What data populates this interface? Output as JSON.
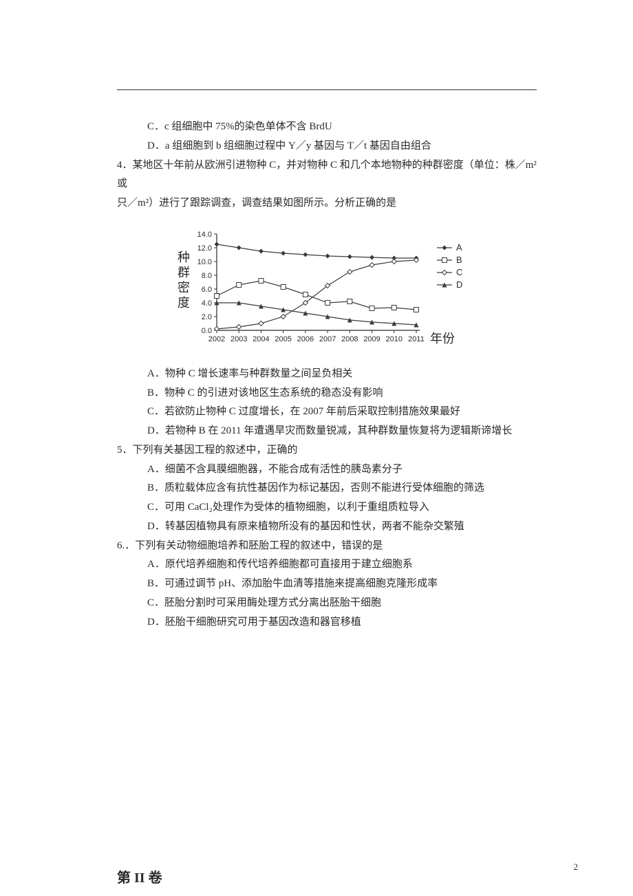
{
  "q3": {
    "option_c": "C．c 组细胞中 75%的染色单体不含 BrdU",
    "option_d": "D．a 组细胞到 b 组细胞过程中 Y／y 基因与 T／t 基因自由组合"
  },
  "q4": {
    "stem1": "4．某地区十年前从欧洲引进物种 C，并对物种 C 和几个本地物种的种群密度（单位：株／m²或",
    "stem2": "只／m²）进行了跟踪调查，调查结果如图所示。分析正确的是",
    "option_a": "A．物种 C 增长速率与种群数量之间呈负相关",
    "option_b": "B．物种 C 的引进对该地区生态系统的稳态没有影响",
    "option_c": "C．若欲防止物种 C 过度增长，在 2007 年前后采取控制措施效果最好",
    "option_d": "D．若物种 B 在 2011 年遭遇旱灾而数量锐减，其种群数量恢复将为逻辑斯谛增长"
  },
  "q5": {
    "stem": "5．下列有关基因工程的叙述中，正确的",
    "option_a": "A．细菌不含具膜细胞器，不能合成有活性的胰岛素分子",
    "option_b": "B．质粒载体应含有抗性基因作为标记基因，否则不能进行受体细胞的筛选",
    "option_c": "C．可用 CaCl₂处理作为受体的植物细胞，以利于重组质粒导入",
    "option_d": "D．转基因植物具有原来植物所没有的基因和性状，两者不能杂交繁殖"
  },
  "q6": {
    "stem": "6.．下列有关动物细胞培养和胚胎工程的叙述中，错误的是",
    "option_a": "A．原代培养细胞和传代培养细胞都可直接用于建立细胞系",
    "option_b": "B．可通过调节 pH、添加胎牛血清等措施来提高细胞克隆形成率",
    "option_c": "C．胚胎分割时可采用酶处理方式分离出胚胎干细胞",
    "option_d": "D．胚胎干细胞研究可用于基因改造和器官移植"
  },
  "section2_header": "第 II 卷",
  "page_num": "2",
  "chart": {
    "type": "line",
    "x_label": "年份",
    "y_label": "种群密度",
    "y_ticks": [
      "0.0",
      "2.0",
      "4.0",
      "6.0",
      "8.0",
      "10.0",
      "12.0",
      "14.0"
    ],
    "x_ticks": [
      "2002",
      "2003",
      "2004",
      "2005",
      "2006",
      "2007",
      "2008",
      "2009",
      "2010",
      "2011"
    ],
    "ylim": [
      0,
      14
    ],
    "series": {
      "A": {
        "marker": "diamond-filled",
        "legend": "A",
        "values": [
          12.5,
          12.0,
          11.5,
          11.2,
          11.0,
          10.8,
          10.7,
          10.6,
          10.5,
          10.5
        ]
      },
      "B": {
        "marker": "square-open",
        "legend": "B",
        "values": [
          5.0,
          6.6,
          7.2,
          6.3,
          5.2,
          4.0,
          4.2,
          3.2,
          3.3,
          3.0
        ]
      },
      "C": {
        "marker": "diamond-open",
        "legend": "C",
        "values": [
          0.2,
          0.5,
          1.0,
          2.0,
          4.0,
          6.5,
          8.5,
          9.5,
          10.0,
          10.2
        ]
      },
      "D": {
        "marker": "triangle-filled",
        "legend": "D",
        "values": [
          4.0,
          4.0,
          3.5,
          3.0,
          2.5,
          2.0,
          1.5,
          1.2,
          1.0,
          0.8
        ]
      }
    },
    "colors": {
      "line": "#3a3a3a",
      "label": "#2a2a2a",
      "axis": "#2a2a2a"
    },
    "font_size_tick": 11,
    "font_size_axis_label": 18
  }
}
